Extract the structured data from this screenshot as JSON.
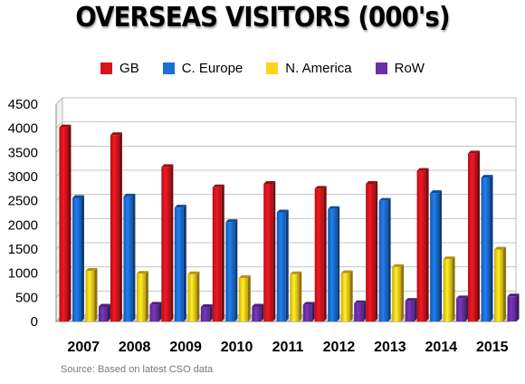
{
  "chart_data": {
    "type": "bar",
    "title": "OVERSEAS VISITORS (000's)",
    "categories": [
      "2007",
      "2008",
      "2009",
      "2010",
      "2011",
      "2012",
      "2013",
      "2014",
      "2015"
    ],
    "series": [
      {
        "name": "GB",
        "color": "#d8141d",
        "values": [
          4020,
          3860,
          3200,
          2780,
          2850,
          2750,
          2850,
          3120,
          3480
        ]
      },
      {
        "name": "C. Europe",
        "color": "#1a6fd6",
        "values": [
          2560,
          2590,
          2360,
          2060,
          2260,
          2330,
          2500,
          2660,
          2980
        ]
      },
      {
        "name": "N. America",
        "color": "#ffd21a",
        "values": [
          1050,
          990,
          980,
          900,
          980,
          1000,
          1130,
          1290,
          1490
        ]
      },
      {
        "name": "RoW",
        "color": "#6b2fa8",
        "values": [
          310,
          350,
          300,
          310,
          350,
          380,
          430,
          480,
          520
        ]
      }
    ],
    "ylim": [
      0,
      4500
    ],
    "yticks": [
      0,
      500,
      1000,
      1500,
      2000,
      2500,
      3000,
      3500,
      4000,
      4500
    ],
    "grid": true,
    "legend_position": "top"
  },
  "source": "Source: Based on latest CSO data"
}
